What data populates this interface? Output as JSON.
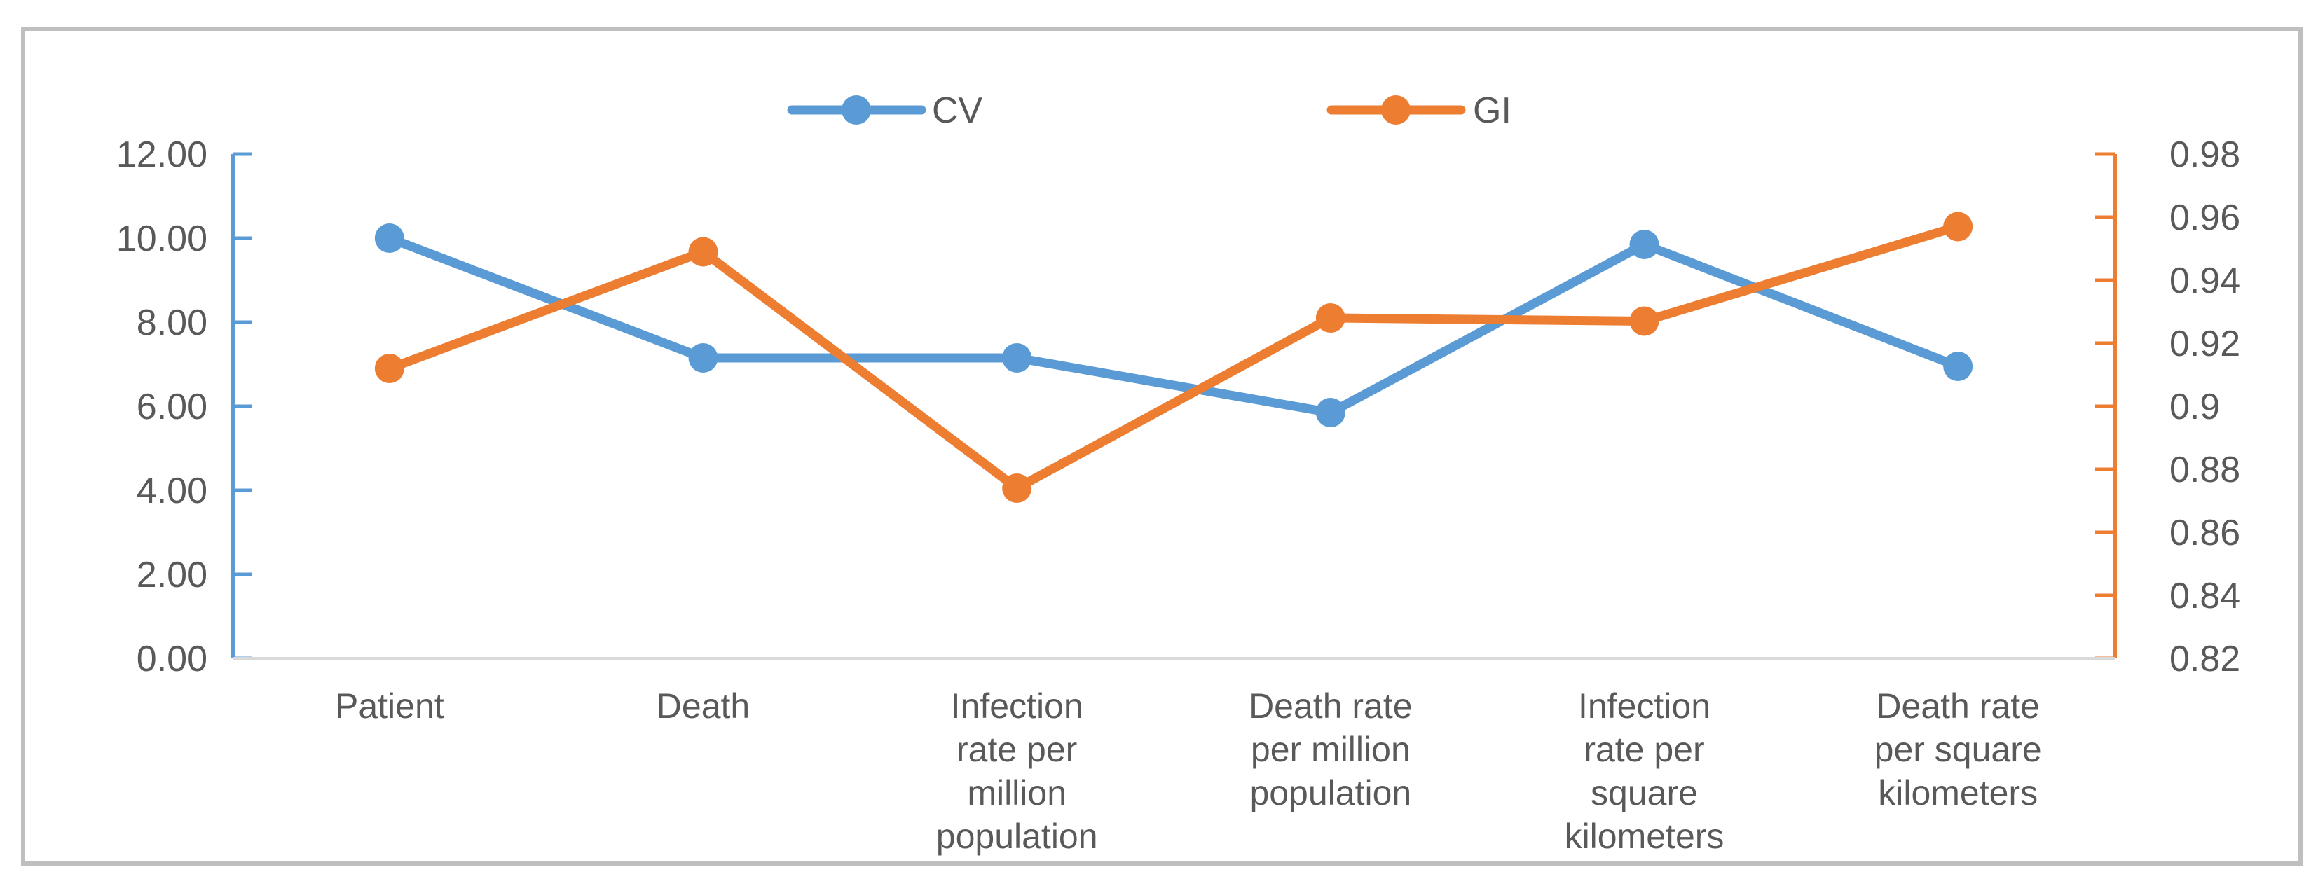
{
  "chart_data": {
    "type": "line",
    "title": "",
    "xlabel": "",
    "ylabel": "",
    "categories": [
      [
        "Patient"
      ],
      [
        "Death"
      ],
      [
        "Infection",
        "rate per",
        "million",
        "population"
      ],
      [
        "Death rate",
        "per  million",
        "population"
      ],
      [
        "Infection",
        "rate per",
        "square",
        "kilometers"
      ],
      [
        "Death rate",
        "per  square",
        "kilometers"
      ]
    ],
    "series": [
      {
        "name": "CV",
        "axis": "left",
        "color": "#5b9bd5",
        "values": [
          10.0,
          7.15,
          7.15,
          5.85,
          9.85,
          6.95
        ]
      },
      {
        "name": "GI",
        "axis": "right",
        "color": "#ed7d31",
        "values": [
          0.912,
          0.949,
          0.874,
          0.928,
          0.927,
          0.957
        ]
      }
    ],
    "y_left": {
      "min": 0,
      "max": 12,
      "ticks": [
        "0.00",
        "2.00",
        "4.00",
        "6.00",
        "8.00",
        "10.00",
        "12.00"
      ],
      "color": "#5b9bd5"
    },
    "y_right": {
      "min": 0.82,
      "max": 0.98,
      "ticks": [
        "0.82",
        "0.84",
        "0.86",
        "0.88",
        "0.9",
        "0.92",
        "0.94",
        "0.96",
        "0.98"
      ],
      "color": "#ed7d31"
    },
    "legend": {
      "position": "top-center",
      "entries": [
        "CV",
        "GI"
      ]
    },
    "grid": false
  }
}
